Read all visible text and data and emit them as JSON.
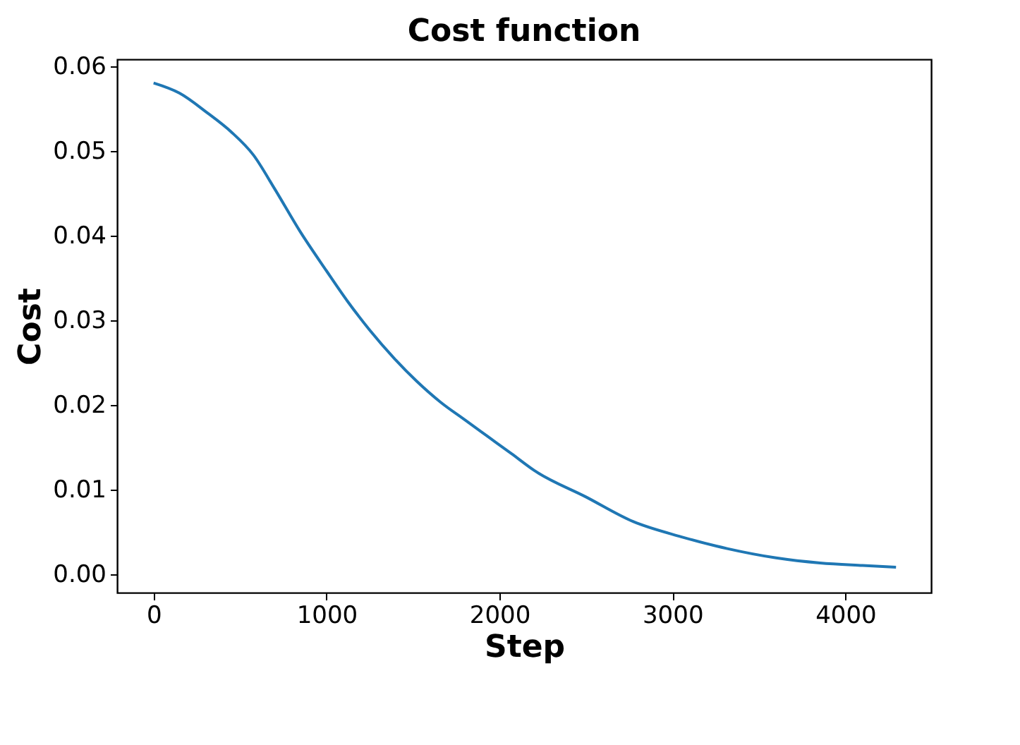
{
  "chart_data": {
    "type": "line",
    "title": "Cost function",
    "xlabel": "Step",
    "ylabel": "Cost",
    "x": [
      0,
      150,
      309,
      450,
      577,
      700,
      846,
      1000,
      1122,
      1250,
      1390,
      1520,
      1659,
      1800,
      1935,
      2070,
      2203,
      2500,
      2772,
      3050,
      3317,
      3600,
      3854,
      4100,
      4293
    ],
    "series": [
      {
        "color": "#1f77b4",
        "values": [
          0.058,
          0.0568,
          0.0545,
          0.0522,
          0.0495,
          0.0455,
          0.0405,
          0.0358,
          0.0322,
          0.0288,
          0.0255,
          0.0228,
          0.0203,
          0.0182,
          0.0162,
          0.0142,
          0.0122,
          0.0091,
          0.0062,
          0.0044,
          0.003,
          0.0019,
          0.0013,
          0.001,
          0.0008
        ]
      }
    ],
    "xlim": [
      -211,
      4496
    ],
    "ylim": [
      -0.0022,
      0.0608
    ],
    "xticks": [
      0,
      1000,
      2000,
      3000,
      4000
    ],
    "yticks": [
      {
        "value": 0,
        "label": "0.00"
      },
      {
        "value": 0.01,
        "label": "0.01"
      },
      {
        "value": 0.02,
        "label": "0.02"
      },
      {
        "value": 0.03,
        "label": "0.03"
      },
      {
        "value": 0.04,
        "label": "0.04"
      },
      {
        "value": 0.05,
        "label": "0.05"
      },
      {
        "value": 0.06,
        "label": "0.06"
      }
    ],
    "grid": false,
    "legend": false
  }
}
